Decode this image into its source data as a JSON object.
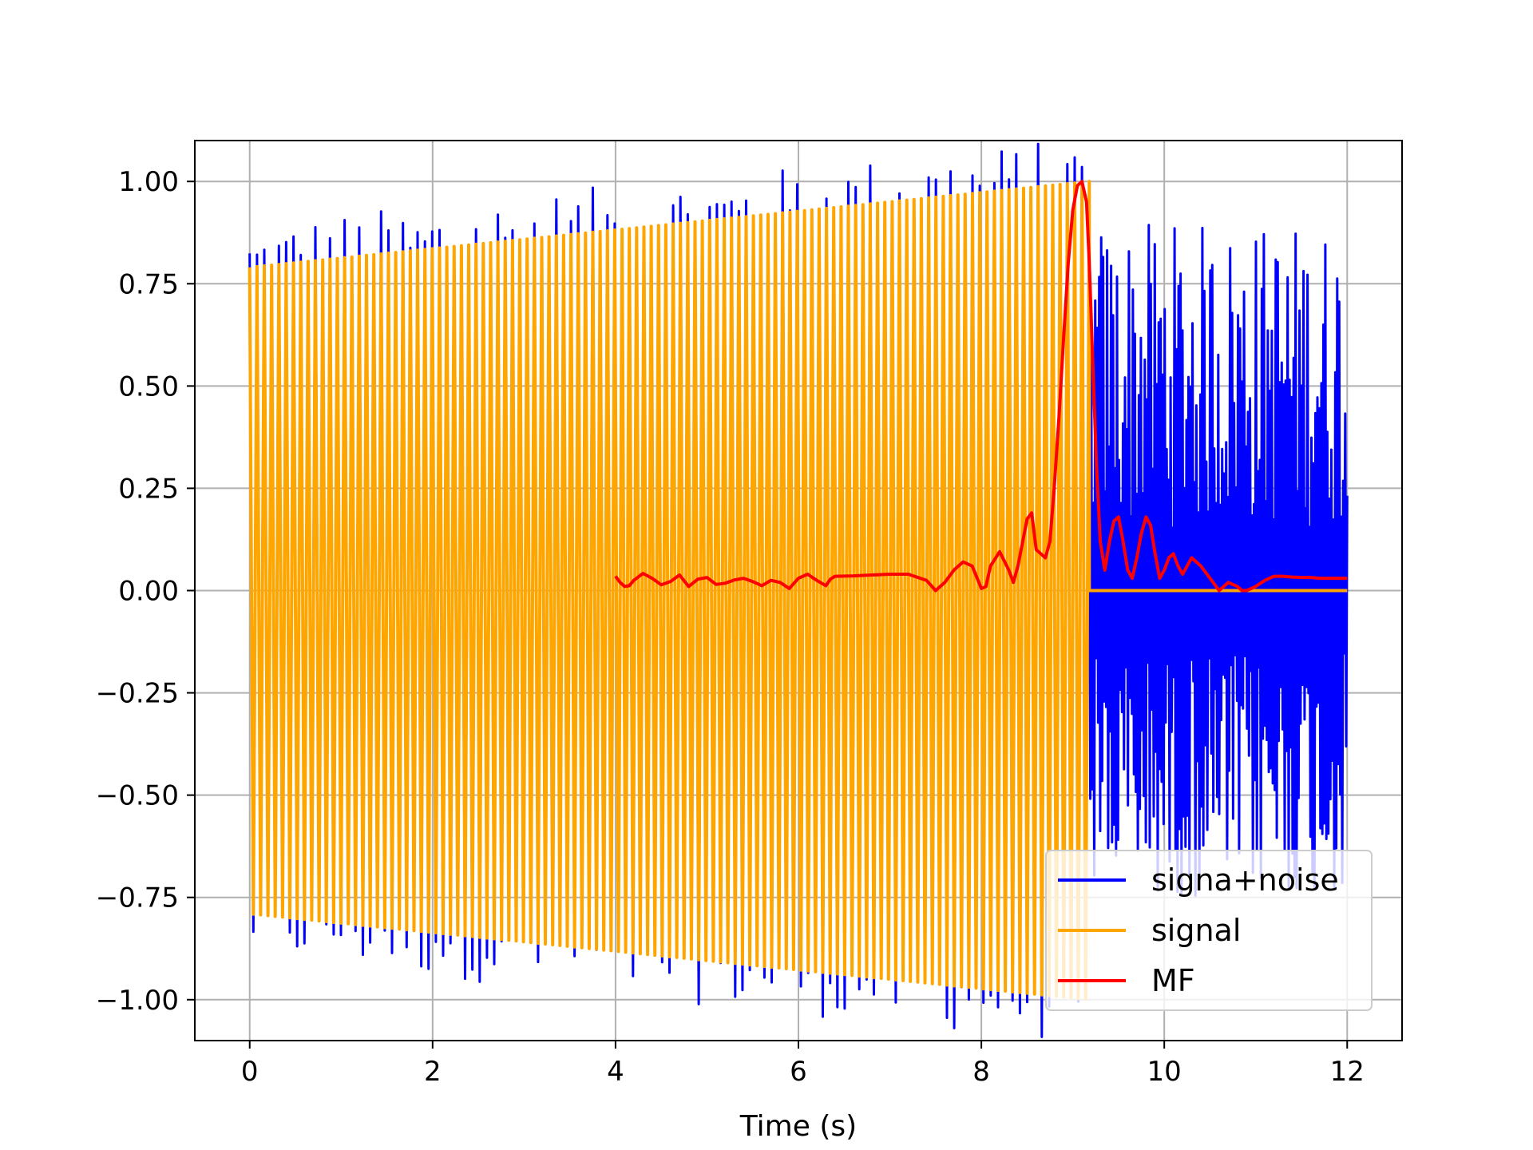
{
  "chart_data": {
    "type": "line",
    "title": "",
    "xlabel": "Time (s)",
    "ylabel": "",
    "xlim": [
      -0.6,
      12.6
    ],
    "ylim": [
      -1.1,
      1.1
    ],
    "x_ticks": [
      0,
      2,
      4,
      6,
      8,
      10,
      12
    ],
    "x_tick_labels": [
      "0",
      "2",
      "4",
      "6",
      "8",
      "10",
      "12"
    ],
    "y_ticks": [
      1.0,
      0.75,
      0.5,
      0.25,
      0.0,
      -0.25,
      -0.5,
      -0.75,
      -1.0
    ],
    "y_tick_labels": [
      "1.00",
      "0.75",
      "0.50",
      "0.25",
      "0.00",
      "−0.25",
      "−0.50",
      "−0.75",
      "−1.00"
    ],
    "grid": true,
    "legend_position": "lower-right",
    "series": [
      {
        "name": "signa+noise",
        "color": "#0000ff",
        "description_values": {
          "chirp_start": 0.0,
          "chirp_end": 9.18,
          "amp_start": 0.79,
          "amp_end": 1.0,
          "noise_region": [
            9.18,
            12.0
          ],
          "noise_range": [
            -0.75,
            0.9
          ]
        }
      },
      {
        "name": "signal",
        "color": "#ffa500",
        "description_values": {
          "chirp_start": 0.0,
          "chirp_end": 9.18,
          "amp_start": 0.79,
          "amp_end": 1.0,
          "zero_after": 9.18,
          "zero_until": 12.0
        }
      },
      {
        "name": "MF",
        "color": "#ff0000",
        "x": [
          4.0,
          4.05,
          4.1,
          4.15,
          4.2,
          4.3,
          4.4,
          4.5,
          4.6,
          4.7,
          4.8,
          4.9,
          5.0,
          5.1,
          5.2,
          5.3,
          5.4,
          5.5,
          5.6,
          5.7,
          5.8,
          5.9,
          6.0,
          6.1,
          6.2,
          6.3,
          6.35,
          6.4,
          6.6,
          6.8,
          7.0,
          7.2,
          7.4,
          7.5,
          7.6,
          7.7,
          7.8,
          7.9,
          8.0,
          8.05,
          8.1,
          8.2,
          8.3,
          8.35,
          8.4,
          8.5,
          8.55,
          8.6,
          8.7,
          8.75,
          8.8,
          8.85,
          8.9,
          8.95,
          9.0,
          9.05,
          9.1,
          9.15,
          9.18,
          9.22,
          9.26,
          9.3,
          9.35,
          9.4,
          9.45,
          9.5,
          9.55,
          9.6,
          9.65,
          9.7,
          9.75,
          9.8,
          9.85,
          9.9,
          9.95,
          10.0,
          10.05,
          10.1,
          10.15,
          10.2,
          10.3,
          10.4,
          10.5,
          10.6,
          10.7,
          10.8,
          10.85,
          10.9,
          11.0,
          11.1,
          11.2,
          11.3,
          11.4,
          11.5,
          11.6,
          11.7,
          11.8,
          11.9,
          12.0
        ],
        "values": [
          0.035,
          0.02,
          0.01,
          0.012,
          0.025,
          0.042,
          0.03,
          0.014,
          0.022,
          0.038,
          0.01,
          0.028,
          0.032,
          0.015,
          0.018,
          0.026,
          0.03,
          0.022,
          0.012,
          0.025,
          0.02,
          0.005,
          0.03,
          0.04,
          0.025,
          0.012,
          0.028,
          0.035,
          0.036,
          0.038,
          0.04,
          0.04,
          0.025,
          0.0,
          0.02,
          0.05,
          0.07,
          0.06,
          0.005,
          0.01,
          0.06,
          0.095,
          0.05,
          0.02,
          0.06,
          0.175,
          0.19,
          0.1,
          0.08,
          0.12,
          0.26,
          0.43,
          0.62,
          0.8,
          0.93,
          0.99,
          1.0,
          0.95,
          0.8,
          0.55,
          0.3,
          0.12,
          0.05,
          0.12,
          0.17,
          0.18,
          0.12,
          0.05,
          0.03,
          0.08,
          0.14,
          0.18,
          0.16,
          0.09,
          0.03,
          0.05,
          0.08,
          0.09,
          0.06,
          0.04,
          0.08,
          0.06,
          0.03,
          0.0,
          0.02,
          0.01,
          0.0,
          0.0,
          0.01,
          0.025,
          0.035,
          0.035,
          0.033,
          0.032,
          0.032,
          0.03,
          0.03,
          0.03,
          0.03
        ]
      }
    ]
  }
}
